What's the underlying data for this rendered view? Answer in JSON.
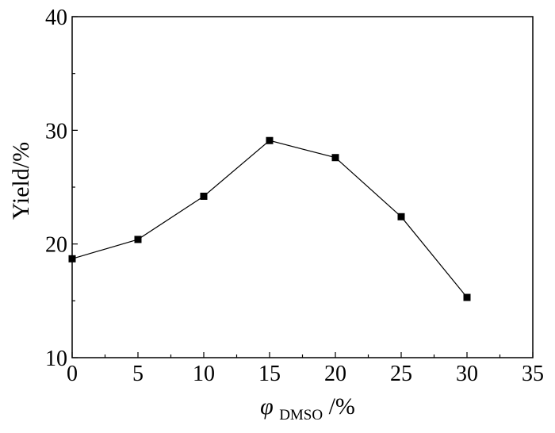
{
  "chart_data": {
    "type": "line",
    "xlabel_main": "φ",
    "xlabel_subscript": "DMSO",
    "xlabel_suffix": "/%",
    "ylabel": "Yield/%",
    "xlim": [
      0,
      35
    ],
    "ylim": [
      10,
      40
    ],
    "x_ticks": [
      0,
      5,
      10,
      15,
      20,
      25,
      30,
      35
    ],
    "y_ticks": [
      10,
      20,
      30,
      40
    ],
    "x_tick_labels": [
      "0",
      "5",
      "10",
      "15",
      "20",
      "25",
      "30",
      "35"
    ],
    "y_tick_labels": [
      "10",
      "20",
      "30",
      "40"
    ],
    "grid": false,
    "marker": "square",
    "line_color": "#000000",
    "marker_color": "#000000",
    "series": [
      {
        "x": [
          0,
          5,
          10,
          15,
          20,
          25,
          30
        ],
        "y": [
          18.7,
          20.4,
          24.2,
          29.1,
          27.6,
          22.4,
          15.3
        ]
      }
    ]
  }
}
